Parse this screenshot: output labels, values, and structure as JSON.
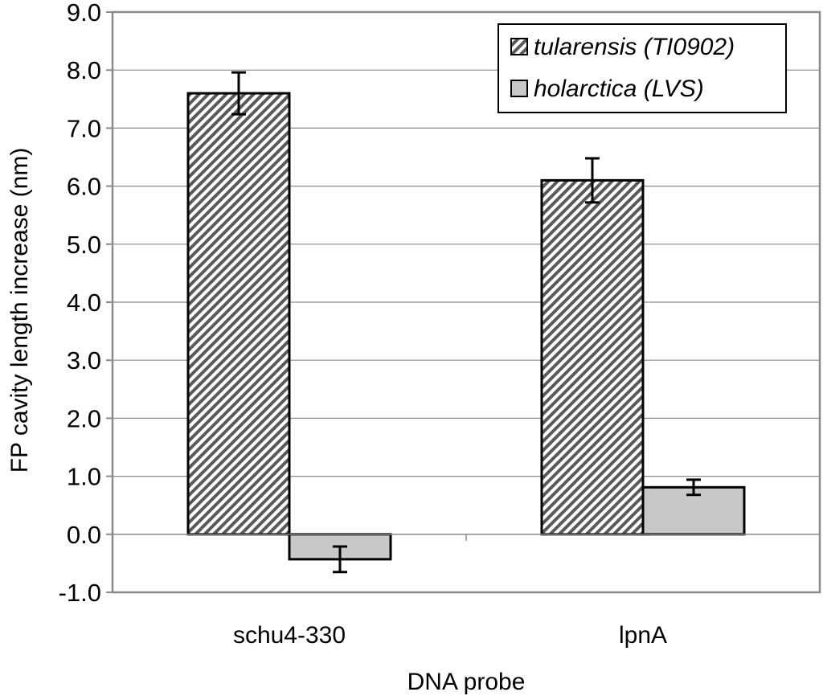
{
  "chart_data": {
    "type": "bar",
    "title": "",
    "xlabel": "DNA probe",
    "ylabel": "FP cavity length increase (nm)",
    "ylim": [
      -1.0,
      9.0
    ],
    "yticks": [
      "9.0",
      "8.0",
      "7.0",
      "6.0",
      "5.0",
      "4.0",
      "3.0",
      "2.0",
      "1.0",
      "0.0",
      "-1.0"
    ],
    "ytick_values": [
      9,
      8,
      7,
      6,
      5,
      4,
      3,
      2,
      1,
      0,
      -1
    ],
    "grid": true,
    "legend_position": "top-right",
    "categories": [
      "schu4-330",
      "lpnA"
    ],
    "series": [
      {
        "name": "tularensis (TI0902)",
        "values": [
          7.6,
          6.1
        ],
        "errors": [
          0.36,
          0.38
        ],
        "fill": "hatched",
        "color": "#5a5a5a"
      },
      {
        "name": "holarctica (LVS)",
        "values": [
          -0.43,
          0.81
        ],
        "errors": [
          0.22,
          0.13
        ],
        "fill": "solid",
        "color": "#c8c8c8"
      }
    ]
  }
}
